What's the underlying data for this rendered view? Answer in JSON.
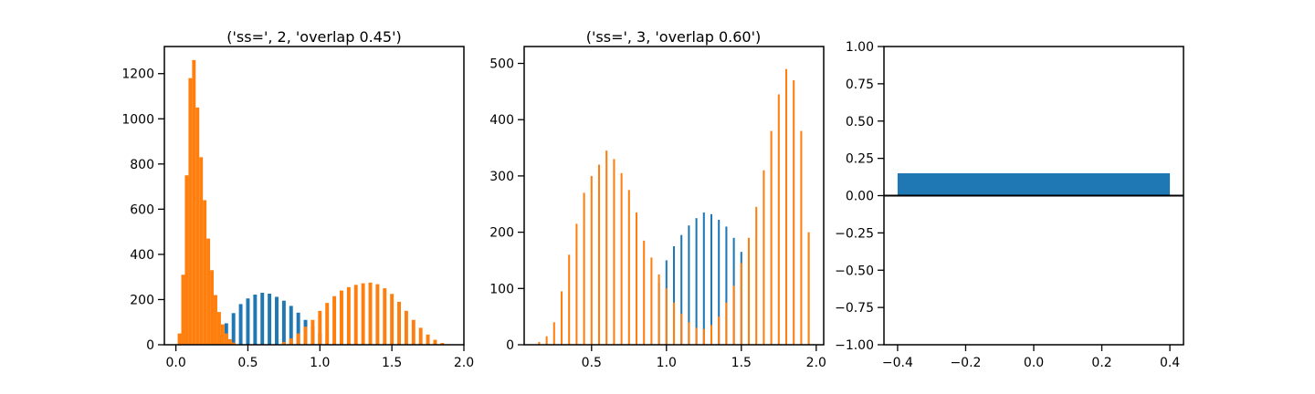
{
  "chart_data": [
    {
      "type": "histogram",
      "title": "('ss=', 2, 'overlap 0.45')",
      "xlabel": "",
      "ylabel": "",
      "xlim": [
        -0.08,
        2.0
      ],
      "ylim": [
        0,
        1320
      ],
      "xticks": [
        0.0,
        0.5,
        1.0,
        1.5,
        2.0
      ],
      "xtick_labels": [
        "0.0",
        "0.5",
        "1.0",
        "1.5",
        "2.0"
      ],
      "yticks": [
        0,
        200,
        400,
        600,
        800,
        1000,
        1200
      ],
      "ytick_labels": [
        "0",
        "200",
        "400",
        "600",
        "800",
        "1000",
        "1200"
      ],
      "grid": false,
      "colors": {
        "blue": "#1f77b4",
        "orange": "#ff7f0e"
      },
      "series": [
        {
          "color": "blue",
          "bins": [
            {
              "x": 0.3,
              "y": 40
            },
            {
              "x": 0.35,
              "y": 95
            },
            {
              "x": 0.4,
              "y": 140
            },
            {
              "x": 0.45,
              "y": 180
            },
            {
              "x": 0.5,
              "y": 205
            },
            {
              "x": 0.55,
              "y": 222
            },
            {
              "x": 0.6,
              "y": 230
            },
            {
              "x": 0.65,
              "y": 226
            },
            {
              "x": 0.7,
              "y": 212
            },
            {
              "x": 0.75,
              "y": 195
            },
            {
              "x": 0.8,
              "y": 172
            },
            {
              "x": 0.85,
              "y": 142
            },
            {
              "x": 0.9,
              "y": 110
            },
            {
              "x": 0.95,
              "y": 80
            },
            {
              "x": 1.0,
              "y": 50
            }
          ]
        },
        {
          "color": "orange",
          "bins": [
            {
              "x": 0.025,
              "y": 50
            },
            {
              "x": 0.05,
              "y": 310
            },
            {
              "x": 0.075,
              "y": 750
            },
            {
              "x": 0.1,
              "y": 1180
            },
            {
              "x": 0.125,
              "y": 1260
            },
            {
              "x": 0.15,
              "y": 1050
            },
            {
              "x": 0.175,
              "y": 830
            },
            {
              "x": 0.2,
              "y": 640
            },
            {
              "x": 0.225,
              "y": 470
            },
            {
              "x": 0.25,
              "y": 330
            },
            {
              "x": 0.275,
              "y": 220
            },
            {
              "x": 0.3,
              "y": 145
            },
            {
              "x": 0.325,
              "y": 90
            },
            {
              "x": 0.35,
              "y": 50
            },
            {
              "x": 0.375,
              "y": 25
            },
            {
              "x": 0.4,
              "y": 10
            },
            {
              "x": 0.75,
              "y": 12
            },
            {
              "x": 0.8,
              "y": 28
            },
            {
              "x": 0.85,
              "y": 50
            },
            {
              "x": 0.9,
              "y": 80
            },
            {
              "x": 0.95,
              "y": 110
            },
            {
              "x": 1.0,
              "y": 150
            },
            {
              "x": 1.05,
              "y": 185
            },
            {
              "x": 1.1,
              "y": 215
            },
            {
              "x": 1.15,
              "y": 240
            },
            {
              "x": 1.2,
              "y": 255
            },
            {
              "x": 1.25,
              "y": 265
            },
            {
              "x": 1.3,
              "y": 272
            },
            {
              "x": 1.35,
              "y": 275
            },
            {
              "x": 1.4,
              "y": 268
            },
            {
              "x": 1.45,
              "y": 250
            },
            {
              "x": 1.5,
              "y": 225
            },
            {
              "x": 1.55,
              "y": 190
            },
            {
              "x": 1.6,
              "y": 150
            },
            {
              "x": 1.65,
              "y": 110
            },
            {
              "x": 1.7,
              "y": 75
            },
            {
              "x": 1.75,
              "y": 45
            },
            {
              "x": 1.8,
              "y": 22
            },
            {
              "x": 1.85,
              "y": 8
            }
          ]
        }
      ]
    },
    {
      "type": "histogram",
      "title": "('ss=', 3, 'overlap 0.60')",
      "xlabel": "",
      "ylabel": "",
      "xlim": [
        0.05,
        2.05
      ],
      "ylim": [
        0,
        530
      ],
      "xticks": [
        0.5,
        1.0,
        1.5,
        2.0
      ],
      "xtick_labels": [
        "0.5",
        "1.0",
        "1.5",
        "2.0"
      ],
      "yticks": [
        0,
        100,
        200,
        300,
        400,
        500
      ],
      "ytick_labels": [
        "0",
        "100",
        "200",
        "300",
        "400",
        "500"
      ],
      "grid": false,
      "colors": {
        "blue": "#1f77b4",
        "orange": "#ff7f0e"
      },
      "series": [
        {
          "color": "blue",
          "bins": [
            {
              "x": 0.95,
              "y": 110
            },
            {
              "x": 1.0,
              "y": 150
            },
            {
              "x": 1.05,
              "y": 175
            },
            {
              "x": 1.1,
              "y": 195
            },
            {
              "x": 1.15,
              "y": 212
            },
            {
              "x": 1.2,
              "y": 225
            },
            {
              "x": 1.25,
              "y": 235
            },
            {
              "x": 1.3,
              "y": 232
            },
            {
              "x": 1.35,
              "y": 222
            },
            {
              "x": 1.4,
              "y": 210
            },
            {
              "x": 1.45,
              "y": 190
            },
            {
              "x": 1.5,
              "y": 165
            },
            {
              "x": 1.55,
              "y": 135
            }
          ]
        },
        {
          "color": "orange",
          "bins": [
            {
              "x": 0.15,
              "y": 5
            },
            {
              "x": 0.2,
              "y": 15
            },
            {
              "x": 0.25,
              "y": 40
            },
            {
              "x": 0.3,
              "y": 95
            },
            {
              "x": 0.35,
              "y": 160
            },
            {
              "x": 0.4,
              "y": 215
            },
            {
              "x": 0.45,
              "y": 270
            },
            {
              "x": 0.5,
              "y": 300
            },
            {
              "x": 0.55,
              "y": 320
            },
            {
              "x": 0.6,
              "y": 345
            },
            {
              "x": 0.65,
              "y": 330
            },
            {
              "x": 0.7,
              "y": 305
            },
            {
              "x": 0.75,
              "y": 275
            },
            {
              "x": 0.8,
              "y": 235
            },
            {
              "x": 0.85,
              "y": 185
            },
            {
              "x": 0.9,
              "y": 155
            },
            {
              "x": 0.95,
              "y": 125
            },
            {
              "x": 1.0,
              "y": 100
            },
            {
              "x": 1.05,
              "y": 75
            },
            {
              "x": 1.1,
              "y": 55
            },
            {
              "x": 1.15,
              "y": 40
            },
            {
              "x": 1.2,
              "y": 30
            },
            {
              "x": 1.25,
              "y": 28
            },
            {
              "x": 1.3,
              "y": 35
            },
            {
              "x": 1.35,
              "y": 50
            },
            {
              "x": 1.4,
              "y": 75
            },
            {
              "x": 1.45,
              "y": 105
            },
            {
              "x": 1.5,
              "y": 145
            },
            {
              "x": 1.55,
              "y": 190
            },
            {
              "x": 1.6,
              "y": 245
            },
            {
              "x": 1.65,
              "y": 310
            },
            {
              "x": 1.7,
              "y": 380
            },
            {
              "x": 1.75,
              "y": 445
            },
            {
              "x": 1.8,
              "y": 490
            },
            {
              "x": 1.85,
              "y": 470
            },
            {
              "x": 1.9,
              "y": 380
            },
            {
              "x": 1.95,
              "y": 200
            }
          ]
        }
      ]
    },
    {
      "type": "bar",
      "title": "",
      "xlabel": "",
      "ylabel": "",
      "xlim": [
        -0.44,
        0.44
      ],
      "ylim": [
        -1.0,
        1.0
      ],
      "xticks": [
        -0.4,
        -0.2,
        0.0,
        0.2,
        0.4
      ],
      "xtick_labels": [
        "−0.4",
        "−0.2",
        "0.0",
        "0.2",
        "0.4"
      ],
      "yticks": [
        -1.0,
        -0.75,
        -0.5,
        -0.25,
        0.0,
        0.25,
        0.5,
        0.75,
        1.0
      ],
      "ytick_labels": [
        "−1.00",
        "−0.75",
        "−0.50",
        "−0.25",
        "0.00",
        "0.25",
        "0.50",
        "0.75",
        "1.00"
      ],
      "grid": false,
      "colors": {
        "bar": "#1f77b4"
      },
      "bars": [
        {
          "x": 0.0,
          "width": 0.8,
          "value": 0.15
        }
      ],
      "hline": 0.0
    }
  ]
}
